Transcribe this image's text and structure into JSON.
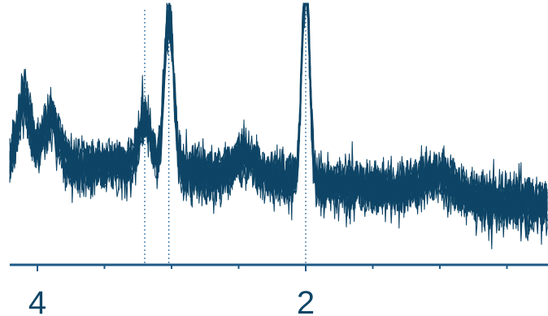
{
  "chart_data": {
    "type": "line",
    "title": "",
    "xlabel": "",
    "ylabel": "",
    "x_reversed": true,
    "xlim": [
      4.4,
      0.4
    ],
    "ylim": [
      0,
      1.05
    ],
    "grid": false,
    "legend": "none",
    "x_major_ticks": [
      4,
      2
    ],
    "x_minor_ticks": [
      3.5,
      3,
      2.5,
      1.5,
      1,
      0.5
    ],
    "tick_labels": [
      {
        "x": 4,
        "label": "4"
      },
      {
        "x": 2,
        "label": "2"
      }
    ],
    "reference_lines_x": [
      3.2,
      3.02,
      2.0
    ],
    "series_count": 16,
    "noise_sd": 0.055,
    "baseline": [
      [
        4.4,
        0.37
      ],
      [
        4.2,
        0.36
      ],
      [
        3.9,
        0.37
      ],
      [
        3.6,
        0.38
      ],
      [
        3.3,
        0.37
      ],
      [
        3.0,
        0.36
      ],
      [
        2.6,
        0.33
      ],
      [
        2.3,
        0.32
      ],
      [
        2.0,
        0.3
      ],
      [
        1.7,
        0.28
      ],
      [
        1.4,
        0.27
      ],
      [
        1.1,
        0.26
      ],
      [
        0.8,
        0.22
      ],
      [
        0.4,
        0.19
      ]
    ],
    "peaks": [
      {
        "x": 4.1,
        "height": 0.33,
        "width": 0.05
      },
      {
        "x": 3.9,
        "height": 0.24,
        "width": 0.06
      },
      {
        "x": 3.2,
        "height": 0.24,
        "width": 0.045
      },
      {
        "x": 3.02,
        "height": 0.74,
        "width": 0.035
      },
      {
        "x": 2.0,
        "height": 1.0,
        "width": 0.028
      },
      {
        "x": 2.45,
        "height": 0.1,
        "width": 0.08
      },
      {
        "x": 1.0,
        "height": 0.08,
        "width": 0.12
      }
    ]
  },
  "colors": {
    "line": "#0e4566",
    "refline": "#2b6a9b",
    "axis": "#1f5a86",
    "tick_text": "#0e4566"
  }
}
